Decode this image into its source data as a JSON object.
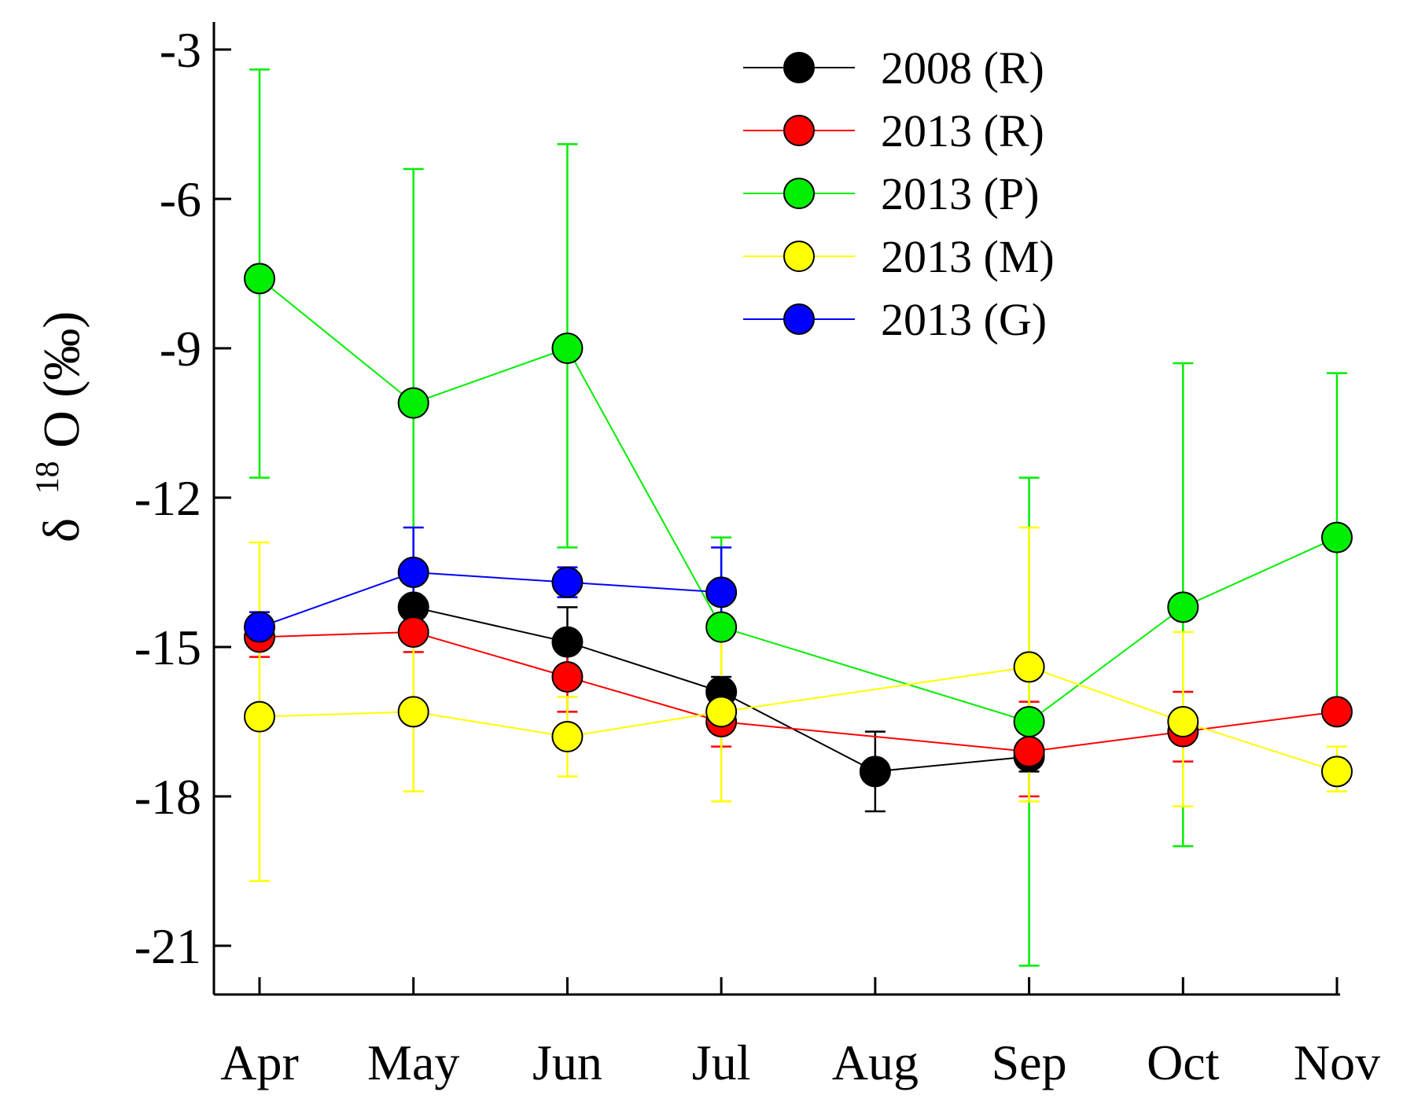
{
  "chart_data": {
    "type": "line",
    "title": "",
    "xlabel": "",
    "ylabel": {
      "symbol": "δ",
      "superscript": "18",
      "main": "O (‰)"
    },
    "ylim": [
      -22,
      -2.2
    ],
    "yticks": [
      -3,
      -6,
      -9,
      -12,
      -15,
      -18,
      -21
    ],
    "ytick_labels": [
      "-3",
      "-6",
      "-9",
      "-12",
      "-15",
      "-18",
      "-21"
    ],
    "categories": [
      "Apr",
      "May",
      "Jun",
      "Jul",
      "Aug",
      "Sep",
      "Oct",
      "Nov"
    ],
    "legend_position": "top-right",
    "series": [
      {
        "name": "2008 (R)",
        "color": "#000000",
        "values": [
          null,
          -14.2,
          -14.9,
          -15.9,
          -17.5,
          -17.2,
          null,
          null
        ],
        "err_low": [
          null,
          null,
          -14.2,
          -15.6,
          -16.7,
          -16.9,
          null,
          null
        ],
        "err_high": [
          null,
          null,
          -15.6,
          -16.2,
          -18.3,
          -17.5,
          null,
          null
        ]
      },
      {
        "name": "2013 (R)",
        "color": "#ff0000",
        "values": [
          -14.8,
          -14.7,
          -15.6,
          -16.5,
          null,
          -17.1,
          -16.7,
          -16.3
        ],
        "err_low": [
          -14.4,
          -14.3,
          -14.9,
          -16.0,
          null,
          -16.1,
          -15.9,
          null
        ],
        "err_high": [
          -15.2,
          -15.1,
          -16.3,
          -17.0,
          null,
          -18.0,
          -17.3,
          null
        ]
      },
      {
        "name": "2013 (P)",
        "color": "#00ee00",
        "values": [
          -7.6,
          -10.1,
          -9.0,
          -14.6,
          null,
          -16.5,
          -14.2,
          -12.8
        ],
        "err_low": [
          -3.4,
          -5.4,
          -4.9,
          -12.8,
          null,
          -11.6,
          -9.3,
          -9.5
        ],
        "err_high": [
          -11.6,
          -14.5,
          -13.0,
          -16.3,
          null,
          -21.4,
          -19.0,
          -16.2
        ]
      },
      {
        "name": "2013 (M)",
        "color": "#ffff00",
        "values": [
          -16.4,
          -16.3,
          -16.8,
          -16.3,
          null,
          -15.4,
          -16.5,
          -17.5
        ],
        "err_low": [
          -12.9,
          -14.7,
          -16.0,
          -14.5,
          null,
          -12.6,
          -14.7,
          -17.0
        ],
        "err_high": [
          -19.7,
          -17.9,
          -17.6,
          -18.1,
          null,
          -18.1,
          -18.2,
          -17.9
        ]
      },
      {
        "name": "2013 (G)",
        "color": "#0000ff",
        "values": [
          -14.6,
          -13.5,
          -13.7,
          -13.9,
          null,
          null,
          null,
          null
        ],
        "err_low": [
          -14.3,
          -12.6,
          -13.4,
          -13.0,
          null,
          null,
          null,
          null
        ],
        "err_high": [
          -14.9,
          -14.4,
          -14.0,
          -14.8,
          null,
          null,
          null,
          null
        ]
      }
    ]
  }
}
